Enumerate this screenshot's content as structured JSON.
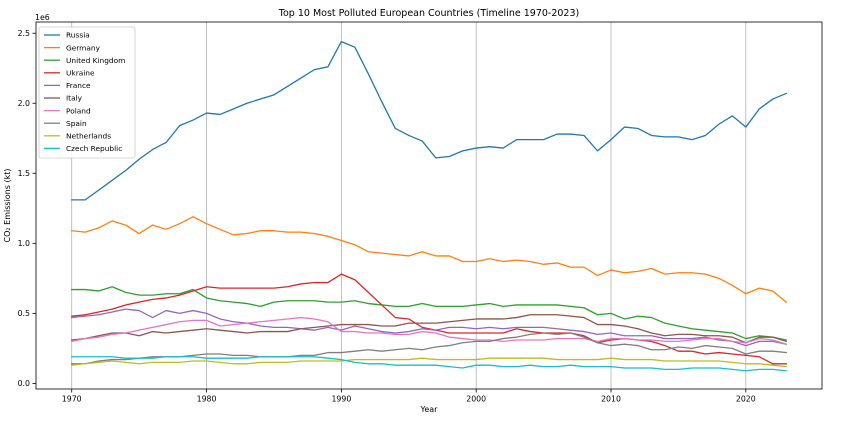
{
  "chart_data": {
    "type": "line",
    "title": "Top 10 Most Polluted European Countries (Timeline 1970-2023)",
    "xlabel": "Year",
    "ylabel": "CO₂ Emissions (kt)",
    "y_offset_label": "1e6",
    "xlim": [
      1967.35,
      2025.65
    ],
    "ylim": [
      -0.04,
      2.58
    ],
    "xticks": [
      1970,
      1980,
      1990,
      2000,
      2010,
      2020
    ],
    "xtick_labels": [
      "1970",
      "1980",
      "1990",
      "2000",
      "2010",
      "2020"
    ],
    "yticks": [
      0.0,
      0.5,
      1.0,
      1.5,
      2.0,
      2.5
    ],
    "ytick_labels": [
      "0.0",
      "0.5",
      "1.0",
      "1.5",
      "2.0",
      "2.5"
    ],
    "grid": "x",
    "legend_position": "top-left",
    "x": [
      1970,
      1971,
      1972,
      1973,
      1974,
      1975,
      1976,
      1977,
      1978,
      1979,
      1980,
      1981,
      1982,
      1983,
      1984,
      1985,
      1986,
      1987,
      1988,
      1989,
      1990,
      1991,
      1992,
      1993,
      1994,
      1995,
      1996,
      1997,
      1998,
      1999,
      2000,
      2001,
      2002,
      2003,
      2004,
      2005,
      2006,
      2007,
      2008,
      2009,
      2010,
      2011,
      2012,
      2013,
      2014,
      2015,
      2016,
      2017,
      2018,
      2019,
      2020,
      2021,
      2022,
      2023
    ],
    "series": [
      {
        "name": "Russia",
        "color": "#1f77b4",
        "values": [
          1.31,
          1.31,
          1.38,
          1.45,
          1.52,
          1.6,
          1.67,
          1.72,
          1.84,
          1.88,
          1.93,
          1.92,
          1.96,
          2.0,
          2.03,
          2.06,
          2.12,
          2.18,
          2.24,
          2.26,
          2.44,
          2.4,
          2.21,
          2.01,
          1.82,
          1.77,
          1.73,
          1.61,
          1.62,
          1.66,
          1.68,
          1.69,
          1.68,
          1.74,
          1.74,
          1.74,
          1.78,
          1.78,
          1.77,
          1.66,
          1.74,
          1.83,
          1.82,
          1.77,
          1.76,
          1.76,
          1.74,
          1.77,
          1.85,
          1.91,
          1.83,
          1.96,
          2.03,
          2.07
        ]
      },
      {
        "name": "Germany",
        "color": "#ff7f0e",
        "values": [
          1.09,
          1.08,
          1.11,
          1.16,
          1.13,
          1.07,
          1.13,
          1.1,
          1.14,
          1.19,
          1.14,
          1.1,
          1.06,
          1.07,
          1.09,
          1.09,
          1.08,
          1.08,
          1.07,
          1.05,
          1.02,
          0.99,
          0.94,
          0.93,
          0.92,
          0.91,
          0.94,
          0.91,
          0.91,
          0.87,
          0.87,
          0.89,
          0.87,
          0.88,
          0.87,
          0.85,
          0.86,
          0.83,
          0.83,
          0.77,
          0.81,
          0.79,
          0.8,
          0.82,
          0.78,
          0.79,
          0.79,
          0.78,
          0.75,
          0.7,
          0.64,
          0.68,
          0.66,
          0.58
        ]
      },
      {
        "name": "United Kingdom",
        "color": "#2ca02c",
        "values": [
          0.67,
          0.67,
          0.66,
          0.69,
          0.65,
          0.63,
          0.63,
          0.64,
          0.64,
          0.67,
          0.61,
          0.59,
          0.58,
          0.57,
          0.55,
          0.58,
          0.59,
          0.59,
          0.59,
          0.58,
          0.58,
          0.59,
          0.57,
          0.56,
          0.55,
          0.55,
          0.57,
          0.55,
          0.55,
          0.55,
          0.56,
          0.57,
          0.55,
          0.56,
          0.56,
          0.56,
          0.56,
          0.55,
          0.54,
          0.49,
          0.5,
          0.46,
          0.48,
          0.47,
          0.43,
          0.41,
          0.39,
          0.38,
          0.37,
          0.36,
          0.32,
          0.34,
          0.33,
          0.31
        ]
      },
      {
        "name": "Ukraine",
        "color": "#d62728",
        "values": [
          0.48,
          0.49,
          0.51,
          0.53,
          0.56,
          0.58,
          0.6,
          0.61,
          0.63,
          0.66,
          0.69,
          0.68,
          0.68,
          0.68,
          0.68,
          0.68,
          0.69,
          0.71,
          0.72,
          0.72,
          0.78,
          0.74,
          0.65,
          0.56,
          0.47,
          0.46,
          0.4,
          0.38,
          0.36,
          0.36,
          0.36,
          0.36,
          0.36,
          0.39,
          0.37,
          0.36,
          0.36,
          0.36,
          0.34,
          0.29,
          0.31,
          0.32,
          0.31,
          0.3,
          0.27,
          0.23,
          0.23,
          0.21,
          0.22,
          0.21,
          0.2,
          0.19,
          0.14,
          0.14
        ]
      },
      {
        "name": "France",
        "color": "#9467bd",
        "values": [
          0.47,
          0.48,
          0.49,
          0.51,
          0.53,
          0.52,
          0.47,
          0.52,
          0.5,
          0.52,
          0.5,
          0.46,
          0.44,
          0.43,
          0.41,
          0.4,
          0.4,
          0.39,
          0.38,
          0.4,
          0.38,
          0.41,
          0.39,
          0.37,
          0.36,
          0.37,
          0.39,
          0.38,
          0.4,
          0.4,
          0.39,
          0.4,
          0.39,
          0.4,
          0.4,
          0.4,
          0.39,
          0.38,
          0.37,
          0.35,
          0.36,
          0.34,
          0.34,
          0.34,
          0.32,
          0.32,
          0.32,
          0.33,
          0.31,
          0.3,
          0.27,
          0.3,
          0.3,
          0.28
        ]
      },
      {
        "name": "Italy",
        "color": "#8c564b",
        "values": [
          0.31,
          0.32,
          0.34,
          0.36,
          0.36,
          0.34,
          0.37,
          0.36,
          0.37,
          0.38,
          0.39,
          0.38,
          0.37,
          0.36,
          0.37,
          0.37,
          0.37,
          0.39,
          0.4,
          0.41,
          0.42,
          0.42,
          0.42,
          0.41,
          0.41,
          0.43,
          0.43,
          0.43,
          0.44,
          0.45,
          0.46,
          0.46,
          0.46,
          0.47,
          0.49,
          0.49,
          0.49,
          0.48,
          0.47,
          0.42,
          0.42,
          0.41,
          0.39,
          0.36,
          0.34,
          0.35,
          0.35,
          0.34,
          0.34,
          0.33,
          0.29,
          0.33,
          0.33,
          0.3
        ]
      },
      {
        "name": "Poland",
        "color": "#e377c2",
        "values": [
          0.3,
          0.32,
          0.33,
          0.35,
          0.36,
          0.38,
          0.4,
          0.42,
          0.44,
          0.45,
          0.45,
          0.41,
          0.42,
          0.43,
          0.44,
          0.45,
          0.46,
          0.47,
          0.46,
          0.44,
          0.37,
          0.37,
          0.36,
          0.36,
          0.35,
          0.35,
          0.37,
          0.36,
          0.33,
          0.32,
          0.31,
          0.31,
          0.3,
          0.31,
          0.31,
          0.31,
          0.32,
          0.32,
          0.32,
          0.3,
          0.32,
          0.32,
          0.31,
          0.31,
          0.3,
          0.3,
          0.31,
          0.32,
          0.32,
          0.3,
          0.29,
          0.32,
          0.31,
          0.28
        ]
      },
      {
        "name": "Spain",
        "color": "#7f7f7f",
        "values": [
          0.14,
          0.14,
          0.16,
          0.17,
          0.17,
          0.18,
          0.19,
          0.19,
          0.19,
          0.2,
          0.21,
          0.21,
          0.2,
          0.2,
          0.19,
          0.19,
          0.19,
          0.2,
          0.2,
          0.22,
          0.22,
          0.23,
          0.24,
          0.23,
          0.24,
          0.25,
          0.24,
          0.26,
          0.27,
          0.29,
          0.3,
          0.3,
          0.32,
          0.33,
          0.35,
          0.36,
          0.35,
          0.36,
          0.33,
          0.29,
          0.27,
          0.28,
          0.27,
          0.24,
          0.24,
          0.26,
          0.25,
          0.27,
          0.26,
          0.25,
          0.21,
          0.23,
          0.23,
          0.22
        ]
      },
      {
        "name": "Netherlands",
        "color": "#bcbd22",
        "values": [
          0.13,
          0.14,
          0.15,
          0.16,
          0.15,
          0.14,
          0.15,
          0.15,
          0.15,
          0.16,
          0.16,
          0.15,
          0.14,
          0.14,
          0.15,
          0.15,
          0.15,
          0.16,
          0.16,
          0.16,
          0.16,
          0.17,
          0.17,
          0.17,
          0.17,
          0.17,
          0.18,
          0.17,
          0.17,
          0.17,
          0.17,
          0.18,
          0.18,
          0.18,
          0.18,
          0.18,
          0.17,
          0.17,
          0.17,
          0.17,
          0.18,
          0.17,
          0.17,
          0.17,
          0.16,
          0.16,
          0.16,
          0.16,
          0.16,
          0.15,
          0.14,
          0.14,
          0.13,
          0.12
        ]
      },
      {
        "name": "Czech Republic",
        "color": "#17becf",
        "values": [
          0.19,
          0.19,
          0.19,
          0.19,
          0.18,
          0.18,
          0.18,
          0.19,
          0.19,
          0.19,
          0.18,
          0.18,
          0.18,
          0.18,
          0.19,
          0.19,
          0.19,
          0.19,
          0.19,
          0.18,
          0.17,
          0.15,
          0.14,
          0.14,
          0.13,
          0.13,
          0.13,
          0.13,
          0.12,
          0.11,
          0.13,
          0.13,
          0.12,
          0.12,
          0.13,
          0.12,
          0.12,
          0.13,
          0.12,
          0.12,
          0.12,
          0.11,
          0.11,
          0.11,
          0.1,
          0.1,
          0.11,
          0.11,
          0.11,
          0.1,
          0.09,
          0.1,
          0.1,
          0.09
        ]
      }
    ]
  }
}
